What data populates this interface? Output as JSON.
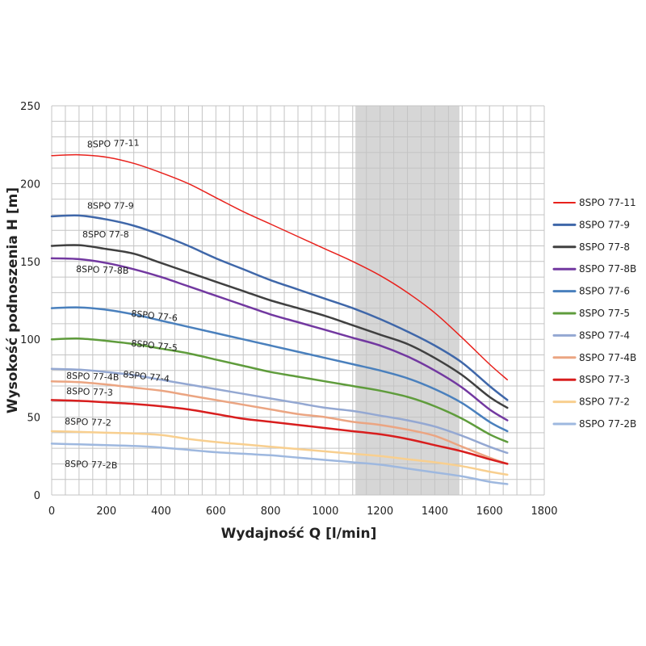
{
  "chart_data": {
    "type": "line",
    "xlabel": "Wydajność Q [l/min]",
    "ylabel": "Wysokość podnoszenia H [m]",
    "xlim": [
      0,
      1800
    ],
    "ylim": [
      0,
      250
    ],
    "x_ticks": [
      "0",
      "200",
      "400",
      "600",
      "800",
      "1000",
      "1200",
      "1400",
      "1600",
      "1800"
    ],
    "y_ticks": [
      "0",
      "50",
      "100",
      "150",
      "200",
      "250"
    ],
    "grid": true,
    "legend_position": "right",
    "highlight_band": {
      "x_start": 1110,
      "x_end": 1490,
      "color": "#d6d6d6"
    },
    "x": [
      0,
      100,
      200,
      300,
      400,
      500,
      600,
      700,
      800,
      900,
      1000,
      1100,
      1200,
      1300,
      1400,
      1500,
      1600,
      1665
    ],
    "series": [
      {
        "name": "8SPO 77-11",
        "color": "#e8211c",
        "width": 1.5,
        "values": [
          218,
          218.5,
          217,
          213,
          207,
          200,
          191,
          182,
          174,
          166,
          158,
          150,
          141,
          130,
          117,
          101,
          84,
          74
        ]
      },
      {
        "name": "8SPO 77-9",
        "color": "#3f67a9",
        "width": 2.5,
        "values": [
          179,
          179.5,
          177,
          173,
          167,
          160,
          152,
          145,
          138,
          132,
          126,
          120,
          113,
          105,
          96,
          85,
          70,
          61
        ]
      },
      {
        "name": "8SPO 77-8",
        "color": "#404040",
        "width": 2.5,
        "values": [
          160,
          160.5,
          158,
          155,
          149,
          143,
          137,
          131,
          125,
          120,
          115,
          109,
          103,
          97,
          88,
          77,
          63,
          56
        ]
      },
      {
        "name": "8SPO 77-8B",
        "color": "#7238a0",
        "width": 2.5,
        "values": [
          152,
          151.5,
          149,
          145,
          140,
          134,
          128,
          122,
          116,
          111,
          106,
          101,
          96,
          89,
          80,
          69,
          55,
          48
        ]
      },
      {
        "name": "8SPO 77-6",
        "color": "#4a80bd",
        "width": 2.5,
        "values": [
          120,
          120.5,
          119,
          116,
          112,
          108,
          104,
          100,
          96,
          92,
          88,
          84,
          80,
          75,
          68,
          59,
          47,
          41
        ]
      },
      {
        "name": "8SPO 77-5",
        "color": "#5f9c3c",
        "width": 2.5,
        "values": [
          100,
          100.5,
          99,
          97,
          94,
          91,
          87,
          83,
          79,
          76,
          73,
          70,
          67,
          63,
          57,
          49,
          39,
          34
        ]
      },
      {
        "name": "8SPO 77-4",
        "color": "#94a8d2",
        "width": 2.5,
        "values": [
          81,
          80.5,
          79,
          77,
          74,
          71,
          68,
          65,
          62,
          59,
          56,
          54,
          51,
          48,
          44,
          38,
          31,
          27
        ]
      },
      {
        "name": "8SPO 77-4B",
        "color": "#eba582",
        "width": 2.5,
        "values": [
          73,
          72.5,
          71,
          69,
          67,
          64,
          61,
          58,
          55,
          52,
          50,
          47,
          45,
          42,
          38,
          31,
          24,
          20
        ]
      },
      {
        "name": "8SPO 77-3",
        "color": "#d81e1e",
        "width": 2.5,
        "values": [
          61,
          60.5,
          59.5,
          58.5,
          57,
          55,
          52,
          49,
          47,
          45,
          43,
          41,
          39,
          36,
          32,
          28,
          23,
          20
        ]
      },
      {
        "name": "8SPO 77-2",
        "color": "#f8cf8f",
        "width": 2.5,
        "values": [
          41,
          40.5,
          40,
          39.5,
          38.5,
          36,
          34,
          32.5,
          31,
          29.5,
          28,
          26.5,
          25,
          23,
          21,
          18.5,
          15,
          13
        ]
      },
      {
        "name": "8SPO 77-2B",
        "color": "#9eb8df",
        "width": 2.5,
        "values": [
          33,
          32.5,
          32,
          31.5,
          30.5,
          29,
          27.5,
          26.5,
          25.5,
          24,
          22.5,
          21,
          19.5,
          17,
          14.5,
          12,
          8.5,
          7
        ]
      }
    ],
    "curve_labels": [
      {
        "text": "8SPO 77-11",
        "series": "8SPO 77-11"
      },
      {
        "text": "8SPO 77-9",
        "series": "8SPO 77-9"
      },
      {
        "text": "8SPO 77-8",
        "series": "8SPO 77-8"
      },
      {
        "text": "8SPO 77-8B",
        "series": "8SPO 77-8B"
      },
      {
        "text": "8SPO 77-6",
        "series": "8SPO 77-6"
      },
      {
        "text": "8SPO 77-5",
        "series": "8SPO 77-5"
      },
      {
        "text": "8SPO 77-4",
        "series": "8SPO 77-4"
      },
      {
        "text": "8SPO 77-4B",
        "series": "8SPO 77-4B"
      },
      {
        "text": "8SPO 77-3",
        "series": "8SPO 77-3"
      },
      {
        "text": "8SPO 77-2",
        "series": "8SPO 77-2"
      },
      {
        "text": "8SPO 77-2B",
        "series": "8SPO 77-2B"
      }
    ]
  }
}
